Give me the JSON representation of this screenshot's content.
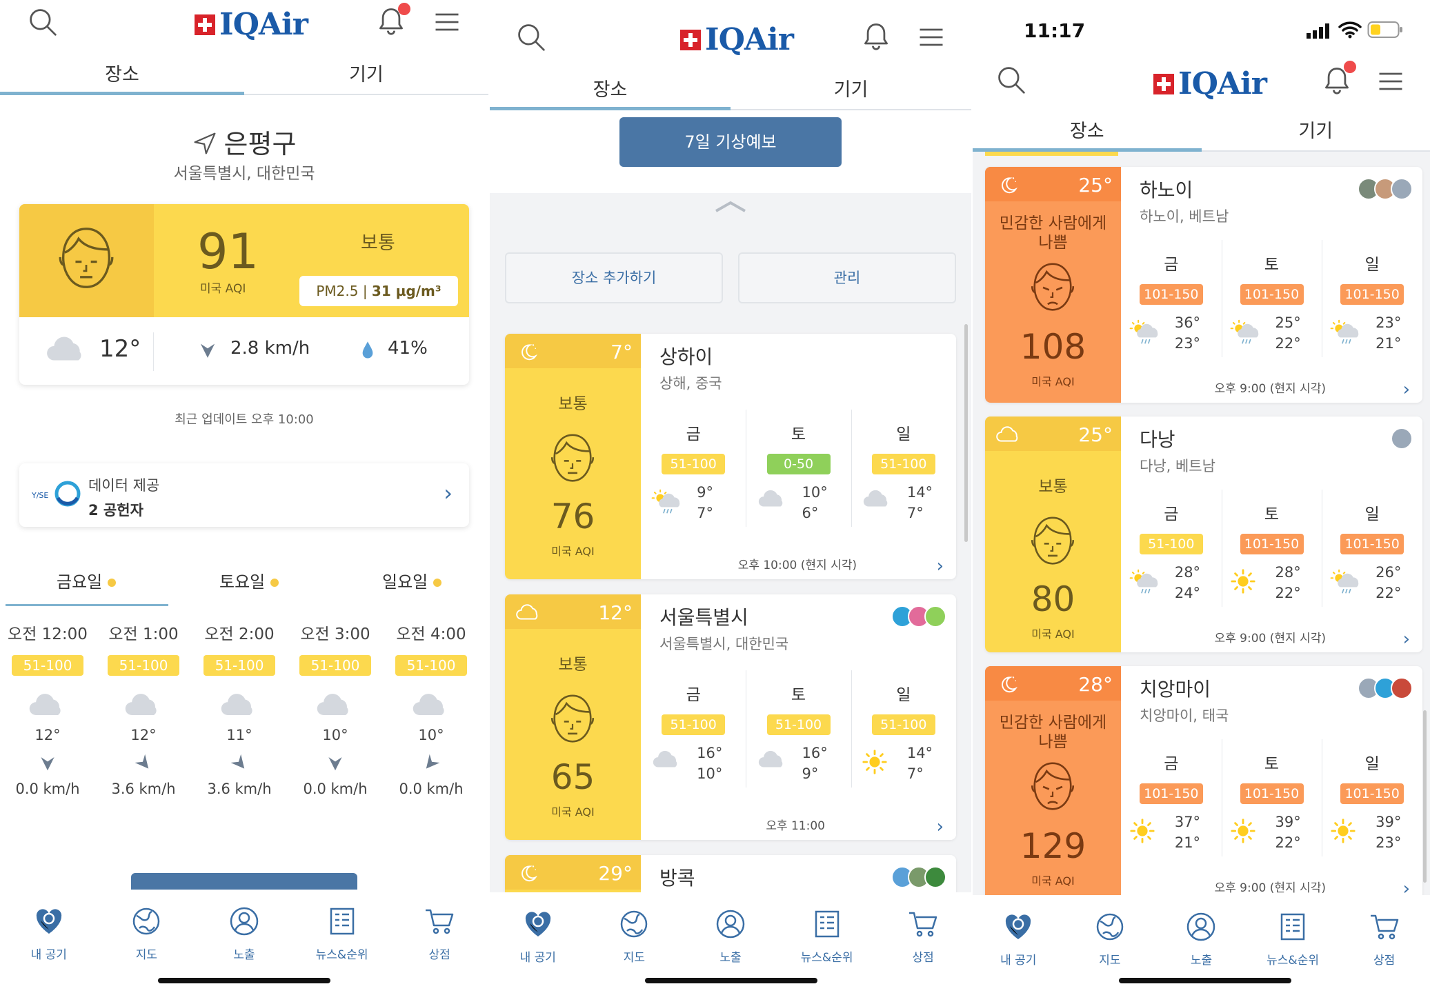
{
  "colors": {
    "yellow": "#fcd94e",
    "orange": "#fb9a58",
    "green": "#8fd05a",
    "blue": "#4a76a5",
    "red": "#d8232a"
  },
  "logo": {
    "text": "IQAir"
  },
  "status_bar": {
    "time": "11:17"
  },
  "tabs": {
    "place": "장소",
    "device": "기기"
  },
  "nav": [
    {
      "label": "내 공기",
      "icon": "heart-icon"
    },
    {
      "label": "지도",
      "icon": "globe-icon"
    },
    {
      "label": "노출",
      "icon": "person-icon"
    },
    {
      "label": "뉴스&순위",
      "icon": "news-icon"
    },
    {
      "label": "상점",
      "icon": "cart-icon"
    }
  ],
  "panel1": {
    "location": "은평구",
    "location_sub": "서울특별시, 대한민국",
    "aqi": "91",
    "aqi_unit": "미국 AQI",
    "status": "보통",
    "pm_label": "PM2.5 | ",
    "pm_value": "31 µg/m³",
    "temp": "12°",
    "wind": "2.8 km/h",
    "humidity": "41%",
    "update": "최근 업데이트 오후 10:00",
    "source_label": "데이터 제공",
    "source_count": "2 공헌자",
    "days": [
      "금요일",
      "토요일",
      "일요일"
    ],
    "hours": [
      {
        "time": "오전 12:00",
        "range": "51-100",
        "temp": "12°",
        "wind": "0.0 km/h"
      },
      {
        "time": "오전 1:00",
        "range": "51-100",
        "temp": "12°",
        "wind": "3.6 km/h"
      },
      {
        "time": "오전 2:00",
        "range": "51-100",
        "temp": "11°",
        "wind": "3.6 km/h"
      },
      {
        "time": "오전 3:00",
        "range": "51-100",
        "temp": "10°",
        "wind": "0.0 km/h"
      },
      {
        "time": "오전 4:00",
        "range": "51-100",
        "temp": "10°",
        "wind": "0.0 km/h"
      }
    ]
  },
  "panel2": {
    "forecast_button": "7일 기상예보",
    "add_place": "장소 추가하기",
    "manage": "관리",
    "cities": [
      {
        "name": "상하이",
        "sub": "상해, 중국",
        "temp": "7°",
        "status": "보통",
        "aqi": "76",
        "unit": "미국 AQI",
        "footer": "오후 10:00 (현지 시각)",
        "days": [
          {
            "d": "금",
            "r": "51-100",
            "c": "yellow",
            "hi": "9°",
            "lo": "7°",
            "wx": "rain"
          },
          {
            "d": "토",
            "r": "0-50",
            "c": "green",
            "hi": "10°",
            "lo": "6°",
            "wx": "cloud"
          },
          {
            "d": "일",
            "r": "51-100",
            "c": "yellow",
            "hi": "14°",
            "lo": "7°",
            "wx": "cloud"
          }
        ]
      },
      {
        "name": "서울특별시",
        "sub": "서울특별시, 대한민국",
        "temp": "12°",
        "status": "보통",
        "aqi": "65",
        "unit": "미국 AQI",
        "footer": "오후 11:00",
        "days": [
          {
            "d": "금",
            "r": "51-100",
            "c": "yellow",
            "hi": "16°",
            "lo": "10°",
            "wx": "cloud"
          },
          {
            "d": "토",
            "r": "51-100",
            "c": "yellow",
            "hi": "16°",
            "lo": "9°",
            "wx": "cloud"
          },
          {
            "d": "일",
            "r": "51-100",
            "c": "yellow",
            "hi": "14°",
            "lo": "7°",
            "wx": "sun"
          }
        ]
      },
      {
        "name": "방콕",
        "temp": "29°"
      }
    ]
  },
  "panel3": {
    "cities": [
      {
        "name": "하노이",
        "sub": "하노이, 베트남",
        "temp": "25°",
        "status": "민감한 사람에게 나쁨",
        "aqi": "108",
        "unit": "미국 AQI",
        "footer": "오후 9:00 (현지 시각)",
        "days": [
          {
            "d": "금",
            "r": "101-150",
            "hi": "36°",
            "lo": "23°",
            "wx": "sunrain"
          },
          {
            "d": "토",
            "r": "101-150",
            "hi": "25°",
            "lo": "22°",
            "wx": "sunrain"
          },
          {
            "d": "일",
            "r": "101-150",
            "hi": "23°",
            "lo": "21°",
            "wx": "sunrain"
          }
        ]
      },
      {
        "name": "다낭",
        "sub": "다낭, 베트남",
        "temp": "25°",
        "status": "보통",
        "aqi": "80",
        "unit": "미국 AQI",
        "footer": "오후 9:00 (현지 시각)",
        "days": [
          {
            "d": "금",
            "r": "51-100",
            "c": "yellow",
            "hi": "28°",
            "lo": "24°",
            "wx": "sunrain"
          },
          {
            "d": "토",
            "r": "101-150",
            "hi": "28°",
            "lo": "22°",
            "wx": "sun"
          },
          {
            "d": "일",
            "r": "101-150",
            "hi": "26°",
            "lo": "22°",
            "wx": "sunrain"
          }
        ]
      },
      {
        "name": "치앙마이",
        "sub": "치앙마이, 태국",
        "temp": "28°",
        "status": "민감한 사람에게 나쁨",
        "aqi": "129",
        "unit": "미국 AQI",
        "footer": "오후 9:00 (현지 시각)",
        "days": [
          {
            "d": "금",
            "r": "101-150",
            "hi": "37°",
            "lo": "21°",
            "wx": "sun"
          },
          {
            "d": "토",
            "r": "101-150",
            "hi": "39°",
            "lo": "22°",
            "wx": "sun"
          },
          {
            "d": "일",
            "r": "101-150",
            "hi": "39°",
            "lo": "23°",
            "wx": "sun"
          }
        ]
      }
    ]
  }
}
